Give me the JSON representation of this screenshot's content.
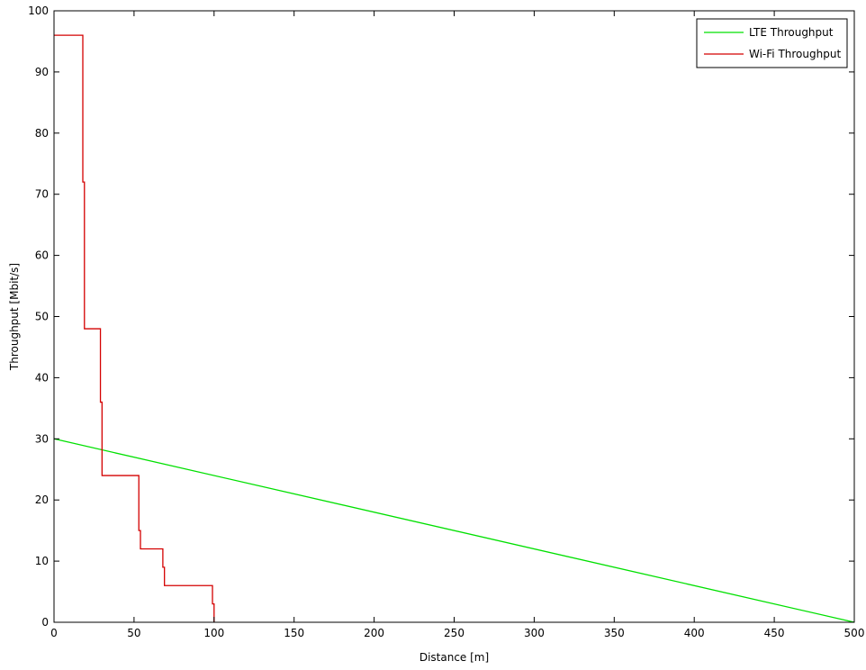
{
  "chart_data": {
    "type": "line",
    "title": "",
    "xlabel": "Distance [m]",
    "ylabel": "Throughput [Mbit/s]",
    "xlim": [
      0,
      500
    ],
    "ylim": [
      0,
      100
    ],
    "x_ticks": [
      "0",
      "50",
      "100",
      "150",
      "200",
      "250",
      "300",
      "350",
      "400",
      "450",
      "500"
    ],
    "y_ticks": [
      "0",
      "10",
      "20",
      "30",
      "40",
      "50",
      "60",
      "70",
      "80",
      "90",
      "100"
    ],
    "grid": false,
    "legend_position": "top-right",
    "series": [
      {
        "name": "LTE Throughput",
        "color": "#00e000",
        "points": [
          [
            0,
            30
          ],
          [
            500,
            0
          ]
        ]
      },
      {
        "name": "Wi-Fi Throughput",
        "color": "#d40000",
        "points": [
          [
            0,
            96
          ],
          [
            18,
            96
          ],
          [
            18,
            72
          ],
          [
            19,
            72
          ],
          [
            19,
            48
          ],
          [
            29,
            48
          ],
          [
            29,
            36
          ],
          [
            30,
            36
          ],
          [
            30,
            24
          ],
          [
            53,
            24
          ],
          [
            53,
            15
          ],
          [
            54,
            15
          ],
          [
            54,
            12
          ],
          [
            68,
            12
          ],
          [
            68,
            9
          ],
          [
            69,
            9
          ],
          [
            69,
            6
          ],
          [
            99,
            6
          ],
          [
            99,
            3
          ],
          [
            100,
            3
          ],
          [
            100,
            0
          ]
        ]
      }
    ]
  }
}
